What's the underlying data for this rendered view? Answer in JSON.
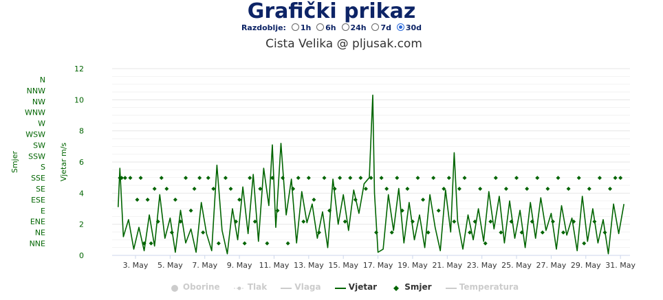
{
  "header": {
    "title": "Grafički prikaz",
    "period_label": "Razdoblje:",
    "period_options": [
      {
        "label": "1h",
        "selected": false
      },
      {
        "label": "6h",
        "selected": false
      },
      {
        "label": "24h",
        "selected": false
      },
      {
        "label": "7d",
        "selected": false
      },
      {
        "label": "30d",
        "selected": true
      }
    ]
  },
  "chart_data": {
    "type": "line",
    "title": "Cista Velika @ pljusak.com",
    "x_ticks": [
      "3. May",
      "5. May",
      "7. May",
      "9. May",
      "11. May",
      "13. May",
      "15. May",
      "17. May",
      "19. May",
      "21. May",
      "23. May",
      "25. May",
      "27. May",
      "29. May",
      "31. May"
    ],
    "x_range": [
      "2. May",
      "31. May"
    ],
    "y_axis_left_speed": {
      "label": "Vjetar m/s",
      "ticks": [
        0,
        2,
        4,
        6,
        8,
        10,
        12
      ],
      "range": [
        0,
        12
      ]
    },
    "y_axis_left_direction": {
      "label": "Smjer",
      "ticks": [
        "N",
        "NNW",
        "NW",
        "WNW",
        "W",
        "WSW",
        "SW",
        "SSW",
        "S",
        "SSE",
        "SE",
        "ESE",
        "E",
        "ENE",
        "NE",
        "NNE"
      ]
    },
    "grid": true,
    "legend_position": "bottom",
    "colors": {
      "wind": "#006400",
      "direction": "#006400",
      "inactive": "#cccccc",
      "title": "#0d2466"
    },
    "series": [
      {
        "name": "Oborine",
        "visible": false
      },
      {
        "name": "Tlak",
        "visible": false
      },
      {
        "name": "Vlaga",
        "visible": false
      },
      {
        "name": "Vjetar",
        "visible": true,
        "points": [
          [
            2.0,
            3.1
          ],
          [
            2.1,
            5.6
          ],
          [
            2.3,
            1.2
          ],
          [
            2.6,
            2.3
          ],
          [
            2.9,
            0.4
          ],
          [
            3.2,
            1.8
          ],
          [
            3.5,
            0.3
          ],
          [
            3.8,
            2.6
          ],
          [
            4.1,
            0.6
          ],
          [
            4.4,
            3.9
          ],
          [
            4.7,
            1.1
          ],
          [
            5.0,
            2.4
          ],
          [
            5.3,
            0.2
          ],
          [
            5.6,
            2.9
          ],
          [
            5.9,
            0.8
          ],
          [
            6.2,
            1.7
          ],
          [
            6.5,
            0.2
          ],
          [
            6.8,
            3.4
          ],
          [
            7.1,
            1.4
          ],
          [
            7.4,
            0.3
          ],
          [
            7.7,
            5.8
          ],
          [
            8.0,
            1.6
          ],
          [
            8.3,
            0.1
          ],
          [
            8.6,
            3.0
          ],
          [
            8.9,
            1.0
          ],
          [
            9.2,
            4.4
          ],
          [
            9.5,
            1.4
          ],
          [
            9.8,
            5.2
          ],
          [
            10.1,
            0.9
          ],
          [
            10.4,
            5.6
          ],
          [
            10.7,
            3.2
          ],
          [
            10.9,
            7.1
          ],
          [
            11.1,
            1.8
          ],
          [
            11.4,
            7.2
          ],
          [
            11.7,
            2.6
          ],
          [
            12.0,
            4.9
          ],
          [
            12.3,
            0.8
          ],
          [
            12.6,
            4.1
          ],
          [
            12.9,
            2.1
          ],
          [
            13.2,
            3.3
          ],
          [
            13.5,
            1.1
          ],
          [
            13.8,
            2.8
          ],
          [
            14.1,
            0.5
          ],
          [
            14.4,
            4.9
          ],
          [
            14.7,
            2.0
          ],
          [
            15.0,
            3.9
          ],
          [
            15.3,
            1.6
          ],
          [
            15.6,
            4.2
          ],
          [
            15.9,
            2.7
          ],
          [
            16.2,
            4.6
          ],
          [
            16.5,
            5.0
          ],
          [
            16.7,
            10.3
          ],
          [
            16.8,
            4.0
          ],
          [
            17.0,
            0.2
          ],
          [
            17.3,
            0.4
          ],
          [
            17.6,
            3.9
          ],
          [
            17.9,
            1.6
          ],
          [
            18.2,
            4.3
          ],
          [
            18.5,
            0.8
          ],
          [
            18.8,
            3.4
          ],
          [
            19.1,
            1.0
          ],
          [
            19.4,
            2.6
          ],
          [
            19.7,
            0.5
          ],
          [
            20.0,
            3.9
          ],
          [
            20.3,
            1.8
          ],
          [
            20.6,
            0.3
          ],
          [
            20.9,
            4.2
          ],
          [
            21.2,
            1.5
          ],
          [
            21.4,
            6.6
          ],
          [
            21.6,
            2.2
          ],
          [
            21.9,
            0.4
          ],
          [
            22.2,
            2.6
          ],
          [
            22.5,
            1.0
          ],
          [
            22.8,
            3.0
          ],
          [
            23.1,
            0.9
          ],
          [
            23.4,
            4.1
          ],
          [
            23.7,
            1.7
          ],
          [
            24.0,
            3.8
          ],
          [
            24.3,
            0.8
          ],
          [
            24.6,
            3.5
          ],
          [
            24.9,
            1.1
          ],
          [
            25.2,
            2.9
          ],
          [
            25.5,
            0.5
          ],
          [
            25.8,
            3.4
          ],
          [
            26.1,
            1.1
          ],
          [
            26.4,
            3.7
          ],
          [
            26.7,
            1.6
          ],
          [
            27.0,
            2.7
          ],
          [
            27.3,
            0.4
          ],
          [
            27.6,
            3.2
          ],
          [
            27.9,
            1.3
          ],
          [
            28.2,
            2.4
          ],
          [
            28.5,
            0.3
          ],
          [
            28.8,
            3.8
          ],
          [
            29.1,
            0.9
          ],
          [
            29.4,
            3.0
          ],
          [
            29.7,
            0.8
          ],
          [
            30.0,
            2.3
          ],
          [
            30.3,
            0.1
          ],
          [
            30.6,
            3.3
          ],
          [
            30.9,
            1.4
          ],
          [
            31.2,
            3.3
          ]
        ]
      },
      {
        "name": "Smjer",
        "visible": true,
        "points": [
          [
            2.1,
            9
          ],
          [
            2.2,
            9
          ],
          [
            2.4,
            9
          ],
          [
            2.7,
            9
          ],
          [
            3.1,
            11
          ],
          [
            3.3,
            9
          ],
          [
            3.5,
            15
          ],
          [
            3.7,
            11
          ],
          [
            3.9,
            15
          ],
          [
            4.1,
            10
          ],
          [
            4.3,
            13
          ],
          [
            4.5,
            9
          ],
          [
            4.8,
            10
          ],
          [
            5.1,
            14
          ],
          [
            5.3,
            11
          ],
          [
            5.6,
            13
          ],
          [
            5.9,
            9
          ],
          [
            6.2,
            12
          ],
          [
            6.4,
            10
          ],
          [
            6.7,
            9
          ],
          [
            6.9,
            14
          ],
          [
            7.2,
            9
          ],
          [
            7.5,
            10
          ],
          [
            7.8,
            15
          ],
          [
            8.2,
            9
          ],
          [
            8.5,
            10
          ],
          [
            8.8,
            13
          ],
          [
            9.0,
            11
          ],
          [
            9.3,
            15
          ],
          [
            9.6,
            9
          ],
          [
            9.9,
            13
          ],
          [
            10.2,
            10
          ],
          [
            10.6,
            15
          ],
          [
            10.9,
            9
          ],
          [
            11.2,
            12
          ],
          [
            11.5,
            9
          ],
          [
            11.8,
            15
          ],
          [
            12.1,
            10
          ],
          [
            12.4,
            9
          ],
          [
            12.7,
            13
          ],
          [
            13.0,
            9
          ],
          [
            13.3,
            11
          ],
          [
            13.6,
            14
          ],
          [
            13.9,
            9
          ],
          [
            14.2,
            12
          ],
          [
            14.5,
            10
          ],
          [
            14.8,
            9
          ],
          [
            15.1,
            13
          ],
          [
            15.4,
            9
          ],
          [
            15.7,
            11
          ],
          [
            16.0,
            9
          ],
          [
            16.3,
            10
          ],
          [
            16.6,
            9
          ],
          [
            16.9,
            14
          ],
          [
            17.2,
            9
          ],
          [
            17.5,
            10
          ],
          [
            17.8,
            14
          ],
          [
            18.1,
            9
          ],
          [
            18.4,
            12
          ],
          [
            18.7,
            10
          ],
          [
            19.0,
            13
          ],
          [
            19.3,
            9
          ],
          [
            19.6,
            11
          ],
          [
            19.9,
            14
          ],
          [
            20.2,
            9
          ],
          [
            20.5,
            12
          ],
          [
            20.8,
            10
          ],
          [
            21.1,
            9
          ],
          [
            21.4,
            13
          ],
          [
            21.7,
            10
          ],
          [
            22.0,
            9
          ],
          [
            22.3,
            14
          ],
          [
            22.6,
            13
          ],
          [
            22.9,
            10
          ],
          [
            23.2,
            15
          ],
          [
            23.5,
            13
          ],
          [
            23.8,
            9
          ],
          [
            24.1,
            14
          ],
          [
            24.4,
            10
          ],
          [
            24.7,
            13
          ],
          [
            25.0,
            9
          ],
          [
            25.3,
            14
          ],
          [
            25.6,
            10
          ],
          [
            25.9,
            13
          ],
          [
            26.2,
            9
          ],
          [
            26.5,
            14
          ],
          [
            26.8,
            10
          ],
          [
            27.1,
            13
          ],
          [
            27.4,
            9
          ],
          [
            27.7,
            14
          ],
          [
            28.0,
            10
          ],
          [
            28.3,
            13
          ],
          [
            28.6,
            9
          ],
          [
            28.9,
            15
          ],
          [
            29.2,
            10
          ],
          [
            29.5,
            13
          ],
          [
            29.8,
            9
          ],
          [
            30.1,
            14
          ],
          [
            30.4,
            10
          ],
          [
            30.7,
            9
          ],
          [
            31.0,
            9
          ]
        ]
      },
      {
        "name": "Temperatura",
        "visible": false
      }
    ]
  }
}
